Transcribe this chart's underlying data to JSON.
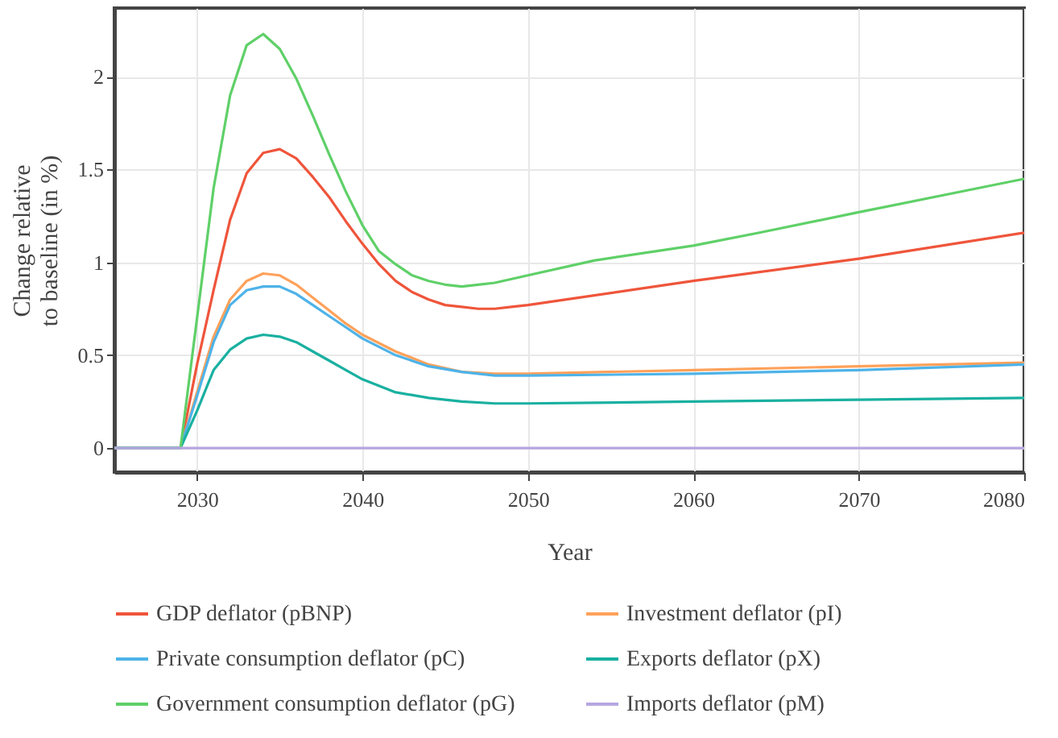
{
  "chart_data": {
    "type": "line",
    "xlabel": "Year",
    "ylabel": "Change relative\nto baseline (in %)",
    "xlim": [
      2025,
      2080
    ],
    "xticks": [
      2030,
      2040,
      2050,
      2060,
      2070,
      2080
    ],
    "ylim": [
      -0.13,
      2.37
    ],
    "yticks": [
      0,
      0.5,
      1,
      1.5,
      2
    ],
    "grid": true,
    "legend": "bottom",
    "marker": "none",
    "line_style": "solid",
    "series": [
      {
        "name": "GDP deflator (pBNP)",
        "color": "#ef553b",
        "x": [
          2025,
          2029,
          2030,
          2031,
          2032,
          2033,
          2034,
          2035,
          2036,
          2037,
          2038,
          2039,
          2040,
          2041,
          2042,
          2043,
          2044,
          2045,
          2046,
          2047,
          2048,
          2049,
          2050,
          2060,
          2070,
          2080
        ],
        "values": [
          0,
          0,
          0.45,
          0.85,
          1.23,
          1.48,
          1.59,
          1.61,
          1.56,
          1.46,
          1.35,
          1.22,
          1.1,
          0.99,
          0.9,
          0.84,
          0.8,
          0.77,
          0.76,
          0.75,
          0.75,
          0.76,
          0.77,
          0.9,
          1.02,
          1.16
        ]
      },
      {
        "name": "Investment deflator (pI)",
        "color": "#ffa15a",
        "x": [
          2025,
          2029,
          2030,
          2031,
          2032,
          2033,
          2034,
          2035,
          2036,
          2037,
          2038,
          2039,
          2040,
          2042,
          2044,
          2046,
          2048,
          2050,
          2060,
          2070,
          2080
        ],
        "values": [
          0,
          0,
          0.3,
          0.6,
          0.8,
          0.9,
          0.94,
          0.93,
          0.88,
          0.81,
          0.74,
          0.67,
          0.61,
          0.52,
          0.45,
          0.41,
          0.4,
          0.4,
          0.42,
          0.44,
          0.46
        ]
      },
      {
        "name": "Private consumption deflator (pC)",
        "color": "#4eb3e8",
        "x": [
          2025,
          2029,
          2030,
          2031,
          2032,
          2033,
          2034,
          2035,
          2036,
          2037,
          2038,
          2039,
          2040,
          2042,
          2044,
          2046,
          2048,
          2050,
          2060,
          2070,
          2080
        ],
        "values": [
          0,
          0,
          0.28,
          0.57,
          0.77,
          0.85,
          0.87,
          0.87,
          0.83,
          0.77,
          0.71,
          0.65,
          0.59,
          0.5,
          0.44,
          0.41,
          0.39,
          0.39,
          0.4,
          0.42,
          0.45
        ]
      },
      {
        "name": "Exports deflator (pX)",
        "color": "#19b0a0",
        "x": [
          2025,
          2029,
          2030,
          2031,
          2032,
          2033,
          2034,
          2035,
          2036,
          2037,
          2038,
          2039,
          2040,
          2042,
          2044,
          2046,
          2048,
          2050,
          2060,
          2070,
          2080
        ],
        "values": [
          0,
          0,
          0.2,
          0.42,
          0.53,
          0.59,
          0.61,
          0.6,
          0.57,
          0.52,
          0.47,
          0.42,
          0.37,
          0.3,
          0.27,
          0.25,
          0.24,
          0.24,
          0.25,
          0.26,
          0.27
        ]
      },
      {
        "name": "Government consumption deflator (pG)",
        "color": "#5fd068",
        "x": [
          2025,
          2029,
          2030,
          2031,
          2032,
          2033,
          2034,
          2035,
          2036,
          2037,
          2038,
          2039,
          2040,
          2041,
          2042,
          2043,
          2044,
          2045,
          2046,
          2047,
          2048,
          2050,
          2054,
          2060,
          2064,
          2070,
          2080
        ],
        "values": [
          0,
          0,
          0.7,
          1.4,
          1.9,
          2.17,
          2.23,
          2.15,
          1.99,
          1.79,
          1.58,
          1.38,
          1.2,
          1.06,
          0.99,
          0.93,
          0.9,
          0.88,
          0.87,
          0.88,
          0.89,
          0.93,
          1.01,
          1.09,
          1.16,
          1.27,
          1.45
        ]
      },
      {
        "name": "Imports deflator (pM)",
        "color": "#b6a6e0",
        "x": [
          2025,
          2080
        ],
        "values": [
          0,
          0
        ]
      }
    ]
  }
}
